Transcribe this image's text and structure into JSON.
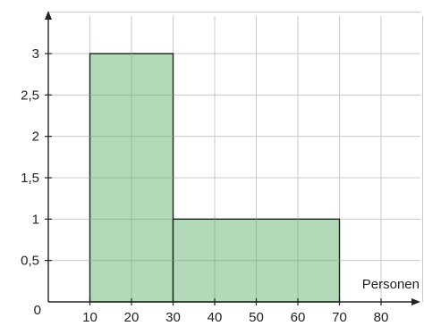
{
  "chart_data": {
    "type": "bar",
    "subtype": "histogram",
    "bins": [
      {
        "x_start": 10,
        "x_end": 30,
        "value": 3
      },
      {
        "x_start": 30,
        "x_end": 70,
        "value": 1
      }
    ],
    "x_ticks": [
      10,
      20,
      30,
      40,
      50,
      60,
      70,
      80
    ],
    "x_tick_labels": [
      "10",
      "20",
      "30",
      "40",
      "50",
      "60",
      "70",
      "80"
    ],
    "y_ticks": [
      0.5,
      1,
      1.5,
      2,
      2.5,
      3
    ],
    "y_tick_labels": [
      "0,5",
      "1",
      "1,5",
      "2",
      "2,5",
      "3"
    ],
    "origin_label": "0",
    "xlabel": "Personen",
    "ylabel": "",
    "xlim": [
      0,
      90
    ],
    "ylim": [
      0,
      3.5
    ],
    "grid": true,
    "colors": {
      "bar_fill": "#b3dab8",
      "bar_stroke": "#1f1f1f",
      "grid": "#c8c8c8",
      "axis": "#222222"
    }
  }
}
